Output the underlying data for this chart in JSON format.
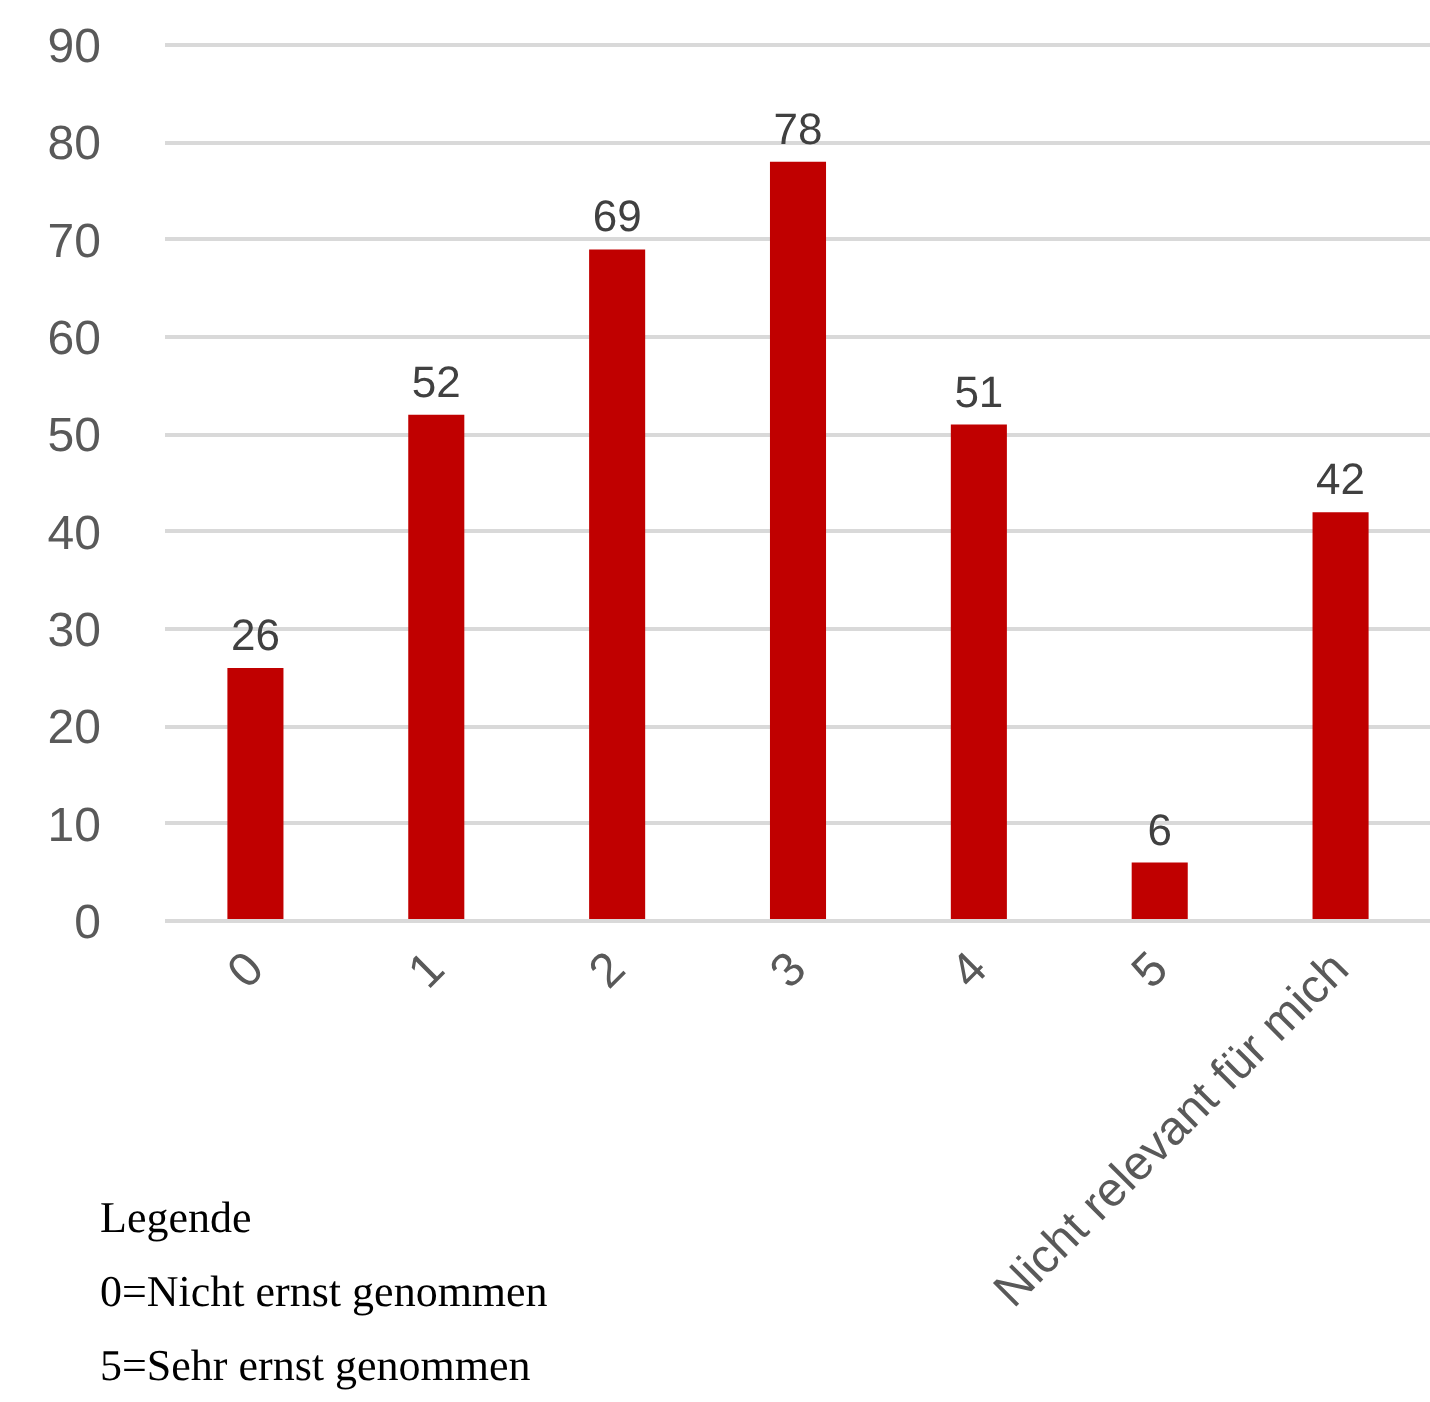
{
  "chart_data": {
    "type": "bar",
    "categories": [
      "0",
      "1",
      "2",
      "3",
      "4",
      "5",
      "Nicht relevant für mich"
    ],
    "values": [
      26,
      52,
      69,
      78,
      51,
      6,
      42
    ],
    "color": "#c00000",
    "ylim": [
      0,
      90
    ],
    "yticks": [
      0,
      10,
      20,
      30,
      40,
      50,
      60,
      70,
      80,
      90
    ],
    "grid": "y",
    "data_labels": true,
    "annotations": [
      "Legende",
      "0=Nicht ernst genommen",
      "5=Sehr ernst genommen"
    ]
  }
}
